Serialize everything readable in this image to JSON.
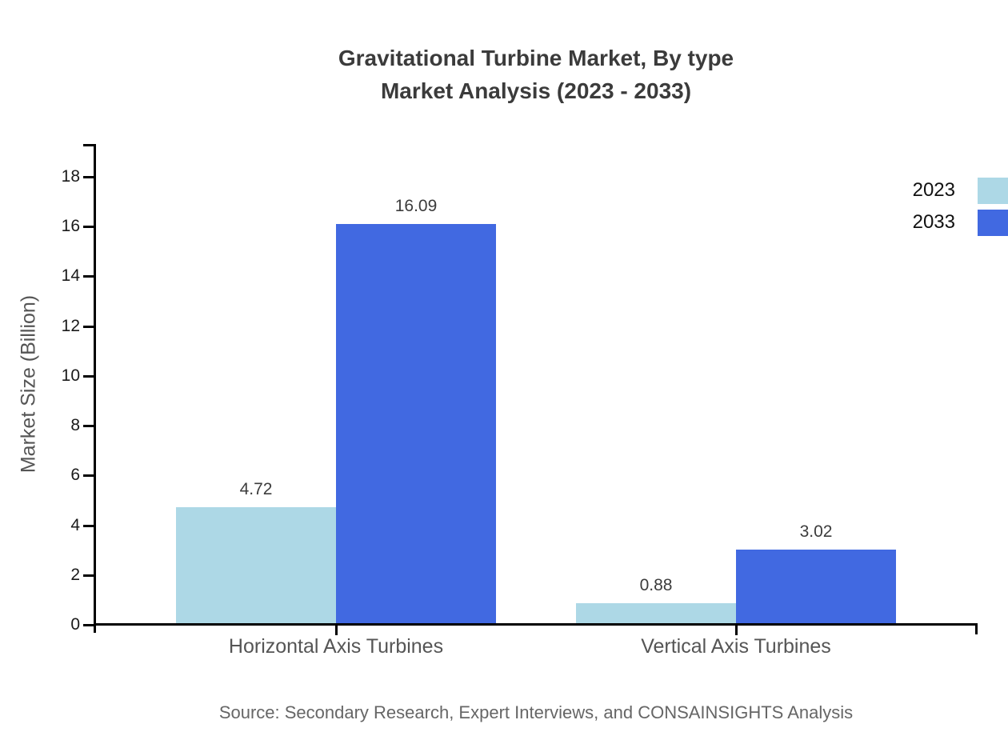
{
  "title": {
    "line1": "Gravitational Turbine Market, By type",
    "line2": "Market Analysis (2023 - 2033)"
  },
  "source": "Source: Secondary Research, Expert Interviews, and CONSAINSIGHTS Analysis",
  "chart_data": {
    "type": "bar",
    "title": "Gravitational Turbine Market, By type Market Analysis (2023 - 2033)",
    "categories": [
      "Horizontal Axis Turbines",
      "Vertical Axis Turbines"
    ],
    "series": [
      {
        "name": "2023",
        "color": "#ADD8E6",
        "values": [
          4.72,
          0.88
        ]
      },
      {
        "name": "2033",
        "color": "#4169E1",
        "values": [
          16.09,
          3.02
        ]
      }
    ],
    "xlabel": "",
    "ylabel": "Market Size (Billion)",
    "ylim": [
      0,
      18
    ],
    "yticks": [
      0,
      2,
      4,
      6,
      8,
      10,
      12,
      14,
      16,
      18
    ],
    "grid": false,
    "legend_position": "top-right",
    "axis_color": "#000000",
    "label_color": "#3c3c3c"
  }
}
